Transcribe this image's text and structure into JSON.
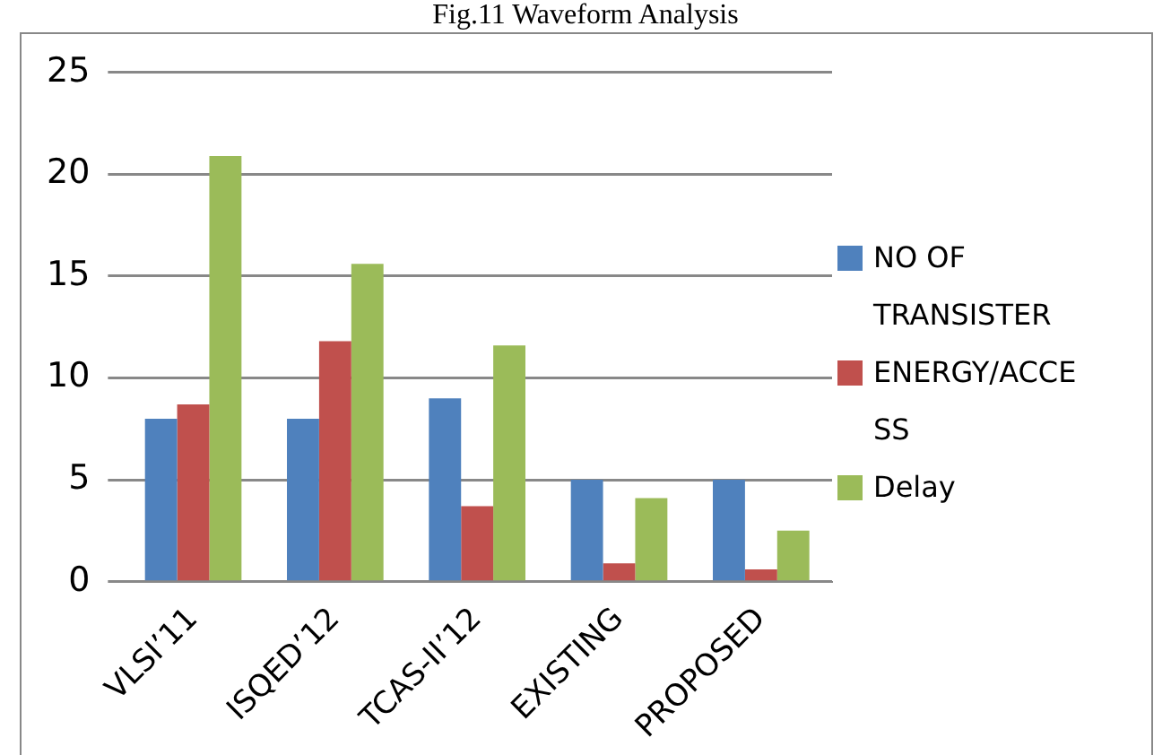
{
  "chart_data": {
    "type": "bar",
    "title": "Fig.11 Waveform Analysis",
    "categories": [
      "VLSI’11",
      "ISQED’12",
      "TCAS-II’12",
      "EXISTING",
      "PROPOSED"
    ],
    "series": [
      {
        "name": "NO OF TRANSISTER",
        "color": "#4f81bd",
        "values": [
          8,
          8,
          9,
          5,
          5
        ]
      },
      {
        "name": "ENERGY/ACCESS",
        "color": "#c0504d",
        "values": [
          8.7,
          11.8,
          3.7,
          0.9,
          0.6
        ]
      },
      {
        "name": "Delay",
        "color": "#9bbb59",
        "values": [
          20.9,
          15.6,
          11.6,
          4.1,
          2.5
        ]
      }
    ],
    "ylim": [
      0,
      25
    ],
    "yticks": [
      0,
      5,
      10,
      15,
      20,
      25
    ],
    "grid": "y",
    "legend": "right"
  }
}
